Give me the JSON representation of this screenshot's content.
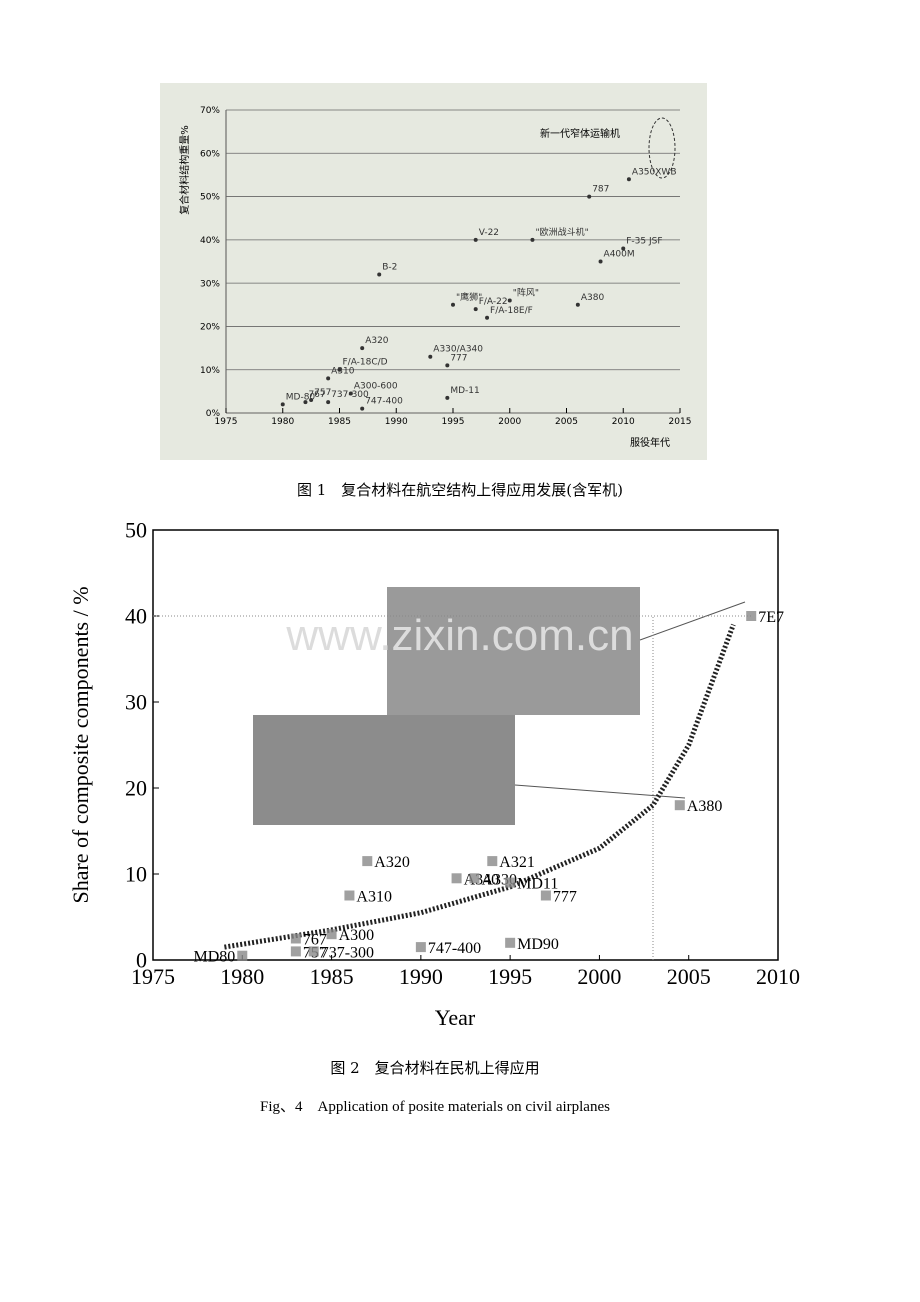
{
  "chart_data": [
    {
      "type": "scatter",
      "caption": "图 1　复合材料在航空结构上得应用发展(含军机)",
      "y_label": "复合材料结构重量%",
      "x_label": "服役年代",
      "annotation": "新一代窄体运输机",
      "labels": [
        "MD-80",
        "757",
        "767",
        "737-300",
        "A310",
        "F/A-18C/D",
        "A320",
        "A300-600",
        "747-400",
        "B-2",
        "A330/A340",
        "777",
        "MD-11",
        "V-22",
        "F/A-22",
        "F/A-18E/F",
        "\"鹰狮\"",
        "\"阵风\"",
        "\"欧洲战斗机\"",
        "A380",
        "787",
        "A350XWB",
        "A400M",
        "F-35 JSF"
      ],
      "x": [
        1980,
        1982.5,
        1982,
        1984,
        1984,
        1985,
        1987,
        1986,
        1987,
        1988.5,
        1993,
        1994.5,
        1994.5,
        1997,
        1997,
        1998,
        1995,
        2000,
        2002,
        2006,
        2007,
        2010.5,
        2008,
        2010
      ],
      "values": [
        2,
        3,
        2.5,
        2.5,
        8,
        10,
        15,
        4.5,
        1,
        32,
        13,
        11,
        3.5,
        40,
        24,
        22,
        25,
        26,
        40,
        25,
        50,
        54,
        35,
        38
      ],
      "color": "#333333",
      "grid": true,
      "xlim": [
        1975,
        2015
      ],
      "xticks": [
        1975,
        1980,
        1985,
        1990,
        1995,
        2000,
        2005,
        2010,
        2015
      ],
      "ylim": [
        0,
        70
      ],
      "yticks": [
        {
          "value": 0,
          "label": "0%"
        },
        {
          "value": 10,
          "label": "10%"
        },
        {
          "value": 20,
          "label": "20%"
        },
        {
          "value": 30,
          "label": "30%"
        },
        {
          "value": 40,
          "label": "40%"
        },
        {
          "value": 50,
          "label": "50%"
        },
        {
          "value": 60,
          "label": "60%"
        },
        {
          "value": 70,
          "label": "70%"
        }
      ]
    },
    {
      "type": "scatter",
      "caption": "图 2　复合材料在民机上得应用",
      "caption_en": "Fig、4　Application of posite materials on civil airplanes",
      "y_label": "Share of composite components / %",
      "x_label": "Year",
      "watermark": "www.zixin.com.cn",
      "labels": [
        "MD80",
        "757",
        "767",
        "737-300",
        "A300",
        "A310",
        "A320",
        "A340",
        "A330",
        "A321",
        "MD11",
        "777",
        "747-400",
        "MD90",
        "A380",
        "7E7"
      ],
      "x": [
        1980,
        1983,
        1983,
        1984,
        1985,
        1986,
        1987,
        1992,
        1993,
        1994,
        1995,
        1997,
        1990,
        1995,
        2004.5,
        2008.5
      ],
      "values": [
        0.5,
        1,
        2.5,
        1,
        3,
        7.5,
        11.5,
        9.5,
        9.5,
        11.5,
        9,
        7.5,
        1.5,
        2,
        18,
        40
      ],
      "color": "#888888",
      "trend": {
        "x": [
          1979,
          1985,
          1990,
          1995,
          2000,
          2003,
          2005,
          2007.5
        ],
        "values": [
          1.5,
          3.5,
          5.5,
          8.5,
          13,
          18,
          25,
          39
        ]
      },
      "hlines": [
        40
      ],
      "vlines": [
        2003
      ],
      "xlim": [
        1975,
        2010
      ],
      "xticks": [
        1975,
        1980,
        1985,
        1990,
        1995,
        2000,
        2005,
        2010
      ],
      "ylim": [
        0,
        50
      ],
      "yticks": [
        0,
        10,
        20,
        30,
        40,
        50
      ]
    }
  ]
}
